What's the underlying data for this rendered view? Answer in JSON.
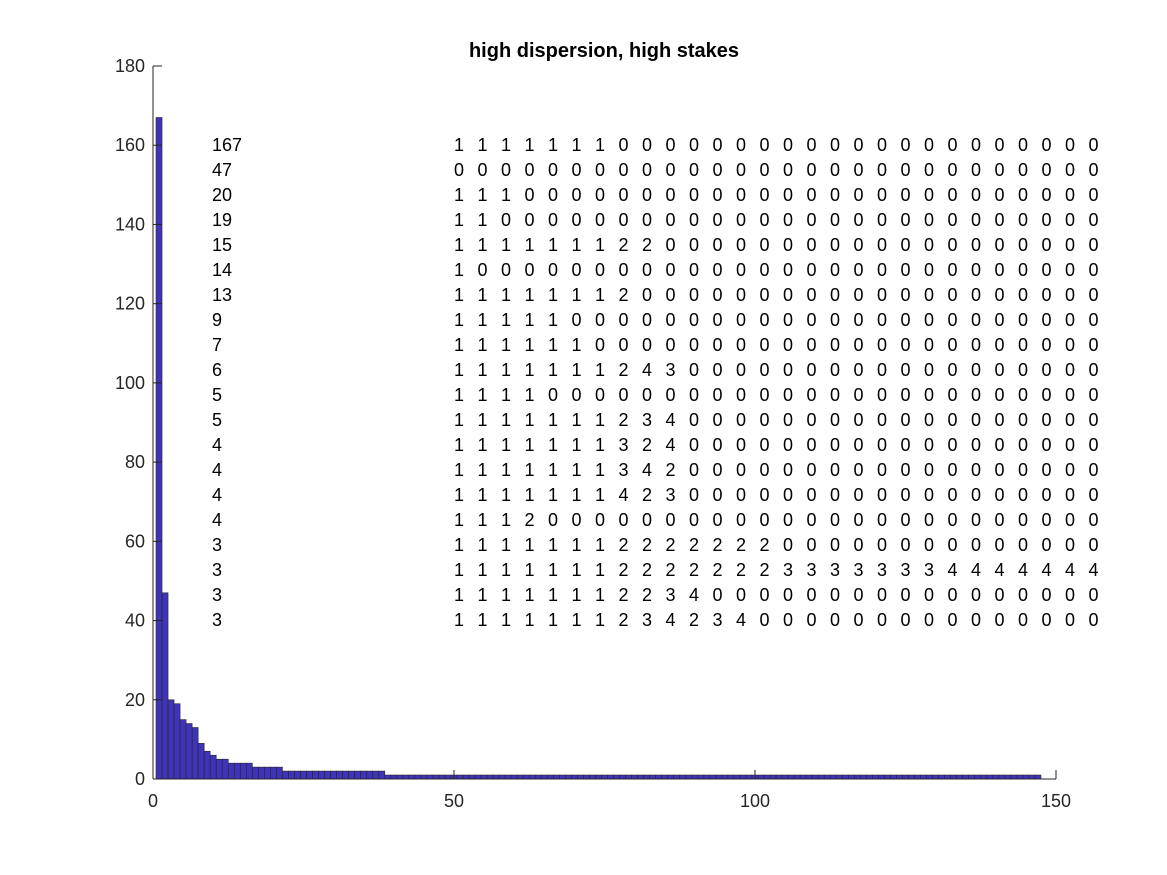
{
  "chart_data": {
    "type": "bar",
    "title": "high dispersion, high stakes",
    "xlabel": "",
    "ylabel": "",
    "xlim": [
      0,
      150
    ],
    "ylim": [
      0,
      180
    ],
    "x_ticks": [
      "0",
      "50",
      "100",
      "150"
    ],
    "y_ticks": [
      "0",
      "20",
      "40",
      "60",
      "80",
      "100",
      "120",
      "140",
      "160",
      "180"
    ],
    "grid": false,
    "bar_color": "#3f33b8",
    "edge_color": "#262626",
    "x": [
      1,
      2,
      3,
      4,
      5,
      6,
      7,
      8,
      9,
      10,
      11,
      12,
      13,
      14,
      15,
      16,
      17,
      18,
      19,
      20,
      21,
      22,
      23,
      24,
      25,
      26,
      27,
      28,
      29,
      30,
      31,
      32,
      33,
      34,
      35,
      36,
      37,
      38,
      39,
      40,
      41,
      42,
      43,
      44,
      45,
      46,
      47,
      48,
      49,
      50,
      51,
      52,
      53,
      54,
      55,
      56,
      57,
      58,
      59,
      60,
      61,
      62,
      63,
      64,
      65,
      66,
      67,
      68,
      69,
      70,
      71,
      72,
      73,
      74,
      75,
      76,
      77,
      78,
      79,
      80,
      81,
      82,
      83,
      84,
      85,
      86,
      87,
      88,
      89,
      90,
      91,
      92,
      93,
      94,
      95,
      96,
      97,
      98,
      99,
      100,
      101,
      102,
      103,
      104,
      105,
      106,
      107,
      108,
      109,
      110,
      111,
      112,
      113,
      114,
      115,
      116,
      117,
      118,
      119,
      120,
      121,
      122,
      123,
      124,
      125,
      126,
      127,
      128,
      129,
      130,
      131,
      132,
      133,
      134,
      135,
      136,
      137,
      138,
      139,
      140,
      141,
      142,
      143,
      144,
      145,
      146,
      147
    ],
    "values": [
      167,
      47,
      20,
      19,
      15,
      14,
      13,
      9,
      7,
      6,
      5,
      5,
      4,
      4,
      4,
      4,
      3,
      3,
      3,
      3,
      3,
      2,
      2,
      2,
      2,
      2,
      2,
      2,
      2,
      2,
      2,
      2,
      2,
      2,
      2,
      2,
      2,
      2,
      1,
      1,
      1,
      1,
      1,
      1,
      1,
      1,
      1,
      1,
      1,
      1,
      1,
      1,
      1,
      1,
      1,
      1,
      1,
      1,
      1,
      1,
      1,
      1,
      1,
      1,
      1,
      1,
      1,
      1,
      1,
      1,
      1,
      1,
      1,
      1,
      1,
      1,
      1,
      1,
      1,
      1,
      1,
      1,
      1,
      1,
      1,
      1,
      1,
      1,
      1,
      1,
      1,
      1,
      1,
      1,
      1,
      1,
      1,
      1,
      1,
      1,
      1,
      1,
      1,
      1,
      1,
      1,
      1,
      1,
      1,
      1,
      1,
      1,
      1,
      1,
      1,
      1,
      1,
      1,
      1,
      1,
      1,
      1,
      1,
      1,
      1,
      1,
      1,
      1,
      1,
      1,
      1,
      1,
      1,
      1,
      1,
      1,
      1,
      1,
      1,
      1,
      1,
      1,
      1,
      1,
      1,
      1,
      1
    ],
    "annotation_counts": [
      "167",
      "47",
      "20",
      "19",
      "15",
      "14",
      "13",
      "9",
      "7",
      "6",
      "5",
      "5",
      "4",
      "4",
      "4",
      "4",
      "3",
      "3",
      "3",
      "3"
    ],
    "annotation_rows": [
      "1 1 1 1 1 1 1 0 0 0 0 0 0 0 0 0 0 0 0 0 0 0 0 0 0 0 0 0",
      "0 0 0 0 0 0 0 0 0 0 0 0 0 0 0 0 0 0 0 0 0 0 0 0 0 0 0 0",
      "1 1 1 0 0 0 0 0 0 0 0 0 0 0 0 0 0 0 0 0 0 0 0 0 0 0 0 0",
      "1 1 0 0 0 0 0 0 0 0 0 0 0 0 0 0 0 0 0 0 0 0 0 0 0 0 0 0",
      "1 1 1 1 1 1 1 2 2 0 0 0 0 0 0 0 0 0 0 0 0 0 0 0 0 0 0 0",
      "1 0 0 0 0 0 0 0 0 0 0 0 0 0 0 0 0 0 0 0 0 0 0 0 0 0 0 0",
      "1 1 1 1 1 1 1 2 0 0 0 0 0 0 0 0 0 0 0 0 0 0 0 0 0 0 0 0",
      "1 1 1 1 1 0 0 0 0 0 0 0 0 0 0 0 0 0 0 0 0 0 0 0 0 0 0 0",
      "1 1 1 1 1 1 0 0 0 0 0 0 0 0 0 0 0 0 0 0 0 0 0 0 0 0 0 0",
      "1 1 1 1 1 1 1 2 4 3 0 0 0 0 0 0 0 0 0 0 0 0 0 0 0 0 0 0",
      "1 1 1 1 0 0 0 0 0 0 0 0 0 0 0 0 0 0 0 0 0 0 0 0 0 0 0 0",
      "1 1 1 1 1 1 1 2 3 4 0 0 0 0 0 0 0 0 0 0 0 0 0 0 0 0 0 0",
      "1 1 1 1 1 1 1 3 2 4 0 0 0 0 0 0 0 0 0 0 0 0 0 0 0 0 0 0",
      "1 1 1 1 1 1 1 3 4 2 0 0 0 0 0 0 0 0 0 0 0 0 0 0 0 0 0 0",
      "1 1 1 1 1 1 1 4 2 3 0 0 0 0 0 0 0 0 0 0 0 0 0 0 0 0 0 0",
      "1 1 1 2 0 0 0 0 0 0 0 0 0 0 0 0 0 0 0 0 0 0 0 0 0 0 0 0",
      "1 1 1 1 1 1 1 2 2 2 2 2 2 2 0 0 0 0 0 0 0 0 0 0 0 0 0 0",
      "1 1 1 1 1 1 1 2 2 2 2 2 2 2 3 3 3 3 3 3 3 4 4 4 4 4 4 4",
      "1 1 1 1 1 1 1 2 2 3 4 0 0 0 0 0 0 0 0 0 0 0 0 0 0 0 0 0",
      "1 1 1 1 1 1 1 2 3 4 2 3 4 0 0 0 0 0 0 0 0 0 0 0 0 0 0 0"
    ]
  }
}
